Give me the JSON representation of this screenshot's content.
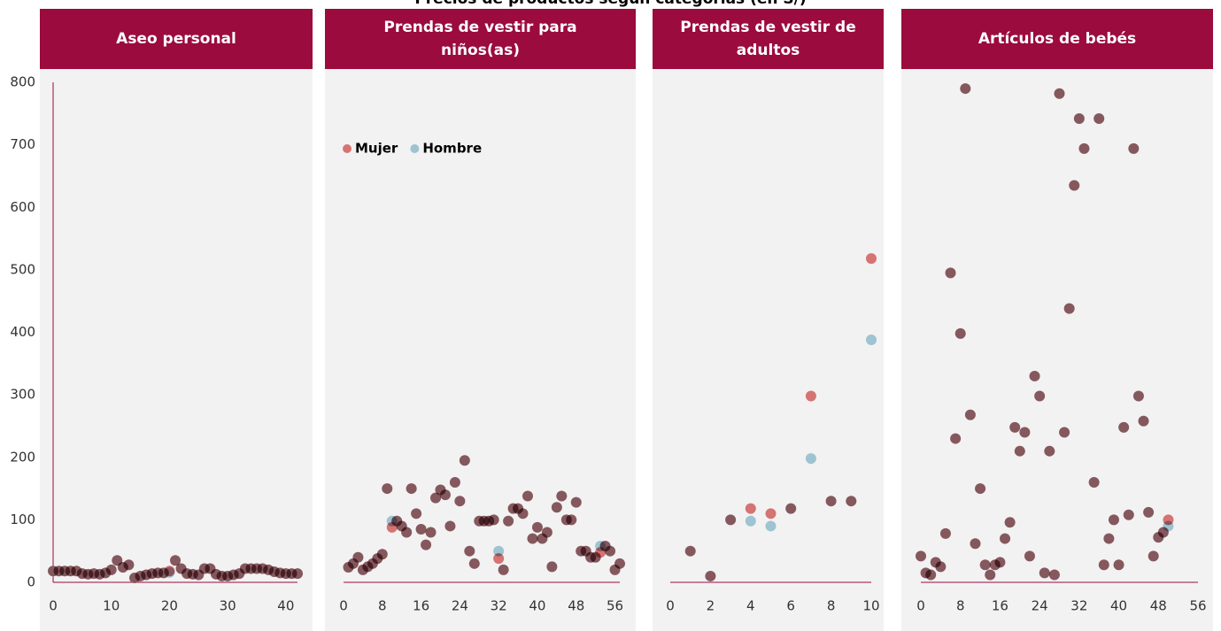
{
  "title": "Precios de productos según categorías (en S/)",
  "chart_data": [
    {
      "type": "scatter",
      "title": "Aseo personal",
      "x": [
        0,
        1,
        2,
        3,
        4,
        5,
        6,
        7,
        8,
        9,
        10,
        11,
        12,
        13,
        14,
        15,
        16,
        17,
        18,
        19,
        20,
        21,
        22,
        23,
        24,
        25,
        26,
        27,
        28,
        29,
        30,
        31,
        32,
        33,
        34,
        35,
        36,
        37,
        38,
        39,
        40,
        41,
        42
      ],
      "series": [
        {
          "color": "#9ec3d1",
          "values": [
            18,
            18,
            18,
            18,
            18,
            14,
            13,
            14,
            13,
            15,
            20,
            35,
            24,
            28,
            7,
            10,
            12,
            14,
            15,
            15,
            16,
            35,
            22,
            14,
            13,
            12,
            22,
            22,
            13,
            10,
            10,
            12,
            14,
            22,
            22,
            22,
            22,
            20,
            17,
            15,
            14,
            14,
            14
          ]
        },
        {
          "color": "#d67373",
          "values": [
            18,
            18,
            18,
            18,
            18,
            14,
            13,
            14,
            13,
            15,
            20,
            35,
            24,
            28,
            7,
            10,
            12,
            14,
            15,
            15,
            18,
            35,
            22,
            14,
            13,
            12,
            22,
            22,
            13,
            10,
            10,
            12,
            14,
            22,
            22,
            22,
            22,
            20,
            17,
            15,
            14,
            14,
            14
          ]
        }
      ],
      "xlim": [
        0,
        42
      ],
      "xticks": [
        0,
        10,
        20,
        30,
        40
      ],
      "ylim": [
        0,
        800
      ],
      "yticks": [
        0,
        100,
        200,
        300,
        400,
        500,
        600,
        700,
        800
      ]
    },
    {
      "type": "scatter",
      "title": "Prendas de vestir para niños(as)",
      "x": [
        1,
        2,
        3,
        4,
        5,
        6,
        7,
        8,
        9,
        10,
        11,
        12,
        13,
        14,
        15,
        16,
        17,
        18,
        19,
        20,
        21,
        22,
        23,
        24,
        25,
        26,
        27,
        28,
        29,
        30,
        31,
        32,
        33,
        34,
        35,
        36,
        37,
        38,
        39,
        40,
        41,
        42,
        43,
        44,
        45,
        46,
        47,
        48,
        49,
        50,
        51,
        52,
        53,
        54,
        55,
        56,
        57
      ],
      "series": [
        {
          "name": "Hombre",
          "color": "#9ec3d1",
          "values": [
            24,
            30,
            40,
            20,
            25,
            30,
            38,
            45,
            150,
            98,
            98,
            90,
            80,
            150,
            110,
            85,
            60,
            80,
            135,
            148,
            140,
            90,
            160,
            130,
            195,
            50,
            30,
            98,
            98,
            98,
            100,
            50,
            20,
            98,
            118,
            118,
            110,
            138,
            70,
            88,
            70,
            80,
            25,
            120,
            138,
            100,
            100,
            128,
            50,
            50,
            40,
            40,
            58,
            58,
            50,
            20,
            30
          ]
        },
        {
          "name": "Mujer",
          "color": "#d67373",
          "values": [
            24,
            30,
            40,
            20,
            25,
            30,
            38,
            45,
            150,
            88,
            98,
            90,
            80,
            150,
            110,
            85,
            60,
            80,
            135,
            148,
            140,
            90,
            160,
            130,
            195,
            50,
            30,
            98,
            98,
            98,
            100,
            38,
            20,
            98,
            118,
            118,
            110,
            138,
            70,
            88,
            70,
            80,
            25,
            120,
            138,
            100,
            100,
            128,
            50,
            50,
            40,
            40,
            48,
            58,
            50,
            20,
            30
          ]
        }
      ],
      "xlim": [
        0,
        57
      ],
      "xticks": [
        0,
        8,
        16,
        24,
        32,
        40,
        48,
        56
      ],
      "ylim": [
        0,
        800
      ]
    },
    {
      "type": "scatter",
      "title": "Prendas de vestir de adultos",
      "x": [
        1,
        2,
        3,
        4,
        5,
        6,
        7,
        8,
        9,
        10
      ],
      "series": [
        {
          "color": "#9ec3d1",
          "values": [
            50,
            10,
            100,
            98,
            90,
            118,
            198,
            130,
            130,
            388
          ]
        },
        {
          "color": "#d67373",
          "values": [
            50,
            10,
            100,
            118,
            110,
            118,
            298,
            130,
            130,
            518
          ]
        }
      ],
      "xlim": [
        0,
        10
      ],
      "xticks": [
        0,
        2,
        4,
        6,
        8,
        10
      ],
      "ylim": [
        0,
        800
      ]
    },
    {
      "type": "scatter",
      "title": "Artículos de bebés",
      "x": [
        0,
        1,
        2,
        3,
        4,
        5,
        6,
        7,
        8,
        9,
        10,
        11,
        12,
        13,
        14,
        15,
        16,
        17,
        18,
        19,
        20,
        21,
        22,
        23,
        24,
        25,
        26,
        27,
        28,
        29,
        30,
        31,
        32,
        33,
        35,
        36,
        37,
        38,
        39,
        40,
        41,
        42,
        43,
        44,
        45,
        46,
        47,
        48,
        49,
        50
      ],
      "series": [
        {
          "color": "#9ec3d1",
          "values": [
            42,
            15,
            12,
            32,
            25,
            78,
            495,
            230,
            398,
            790,
            268,
            62,
            150,
            28,
            12,
            28,
            32,
            70,
            96,
            248,
            210,
            240,
            42,
            330,
            298,
            15,
            210,
            12,
            782,
            240,
            438,
            635,
            742,
            694,
            160,
            742,
            28,
            70,
            100,
            28,
            248,
            108,
            694,
            298,
            258,
            112,
            42,
            72,
            80,
            90
          ]
        },
        {
          "color": "#d67373",
          "values": [
            42,
            15,
            12,
            32,
            25,
            78,
            495,
            230,
            398,
            790,
            268,
            62,
            150,
            28,
            12,
            28,
            32,
            70,
            96,
            248,
            210,
            240,
            42,
            330,
            298,
            15,
            210,
            12,
            782,
            240,
            438,
            635,
            742,
            694,
            160,
            742,
            28,
            70,
            100,
            28,
            248,
            108,
            694,
            298,
            258,
            112,
            42,
            72,
            80,
            100
          ]
        }
      ],
      "xlim": [
        0,
        56
      ],
      "xticks": [
        0,
        8,
        16,
        24,
        32,
        40,
        48,
        56
      ],
      "ylim": [
        0,
        800
      ]
    }
  ]
}
